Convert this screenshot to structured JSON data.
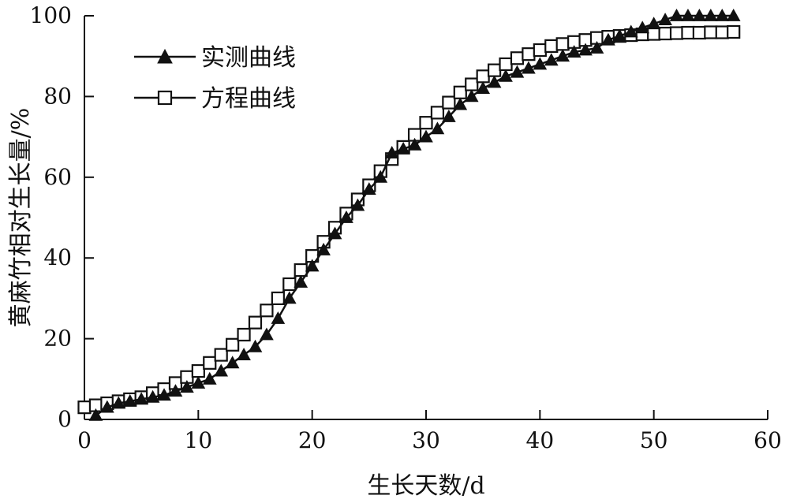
{
  "chart_data": {
    "type": "line",
    "title": "",
    "xlabel": "生长天数/d",
    "ylabel": "黄麻竹相对生长量/%",
    "xlim": [
      0,
      60
    ],
    "ylim": [
      0,
      100
    ],
    "x_ticks": [
      0,
      10,
      20,
      30,
      40,
      50,
      60
    ],
    "y_ticks": [
      0,
      20,
      40,
      60,
      80,
      100
    ],
    "grid": false,
    "legend_position": "top-left",
    "series": [
      {
        "name": "实测曲线",
        "marker": "triangle-filled",
        "color": "#111111",
        "x": [
          1,
          2,
          3,
          4,
          5,
          6,
          7,
          8,
          9,
          10,
          11,
          12,
          13,
          14,
          15,
          16,
          17,
          18,
          19,
          20,
          21,
          22,
          23,
          24,
          25,
          26,
          27,
          28,
          29,
          30,
          31,
          32,
          33,
          34,
          35,
          36,
          37,
          38,
          39,
          40,
          41,
          42,
          43,
          44,
          45,
          46,
          47,
          48,
          49,
          50,
          51,
          52,
          53,
          54,
          55,
          56,
          57
        ],
        "values": [
          1,
          3,
          4,
          4.5,
          5,
          5.5,
          6,
          7,
          8,
          9,
          10,
          12,
          14,
          16,
          18,
          21,
          25,
          30,
          34,
          38,
          42,
          46,
          50,
          53,
          57,
          60,
          66,
          67,
          68,
          70,
          72,
          75,
          78,
          80,
          82,
          83.5,
          85,
          86,
          87,
          88,
          89,
          90,
          91,
          91.5,
          92,
          94,
          95,
          96,
          97,
          98,
          99,
          100,
          100,
          100,
          100,
          100,
          100
        ]
      },
      {
        "name": "方程曲线",
        "marker": "square-open",
        "color": "#111111",
        "x": [
          0,
          1,
          2,
          3,
          4,
          5,
          6,
          7,
          8,
          9,
          10,
          11,
          12,
          13,
          14,
          15,
          16,
          17,
          18,
          19,
          20,
          21,
          22,
          23,
          24,
          25,
          26,
          27,
          28,
          29,
          30,
          31,
          32,
          33,
          34,
          35,
          36,
          37,
          38,
          39,
          40,
          41,
          42,
          43,
          44,
          45,
          46,
          47,
          48,
          49,
          50,
          51,
          52,
          53,
          54,
          55,
          56,
          57
        ],
        "values": [
          3,
          3.5,
          4,
          4.5,
          5,
          5.5,
          6.5,
          7.5,
          9,
          10.5,
          12,
          14,
          16,
          18.5,
          21,
          24,
          27,
          30,
          33.5,
          37,
          40.5,
          44,
          47.5,
          51,
          54.5,
          58,
          61.5,
          64.5,
          67.5,
          70.5,
          73.5,
          76,
          78.5,
          81,
          83,
          85,
          86.5,
          88,
          89.5,
          90.5,
          91.5,
          92.5,
          93,
          93.5,
          94,
          94.5,
          94.8,
          95,
          95.2,
          95.4,
          95.5,
          95.6,
          95.7,
          95.8,
          95.8,
          95.9,
          95.9,
          96
        ]
      }
    ]
  }
}
